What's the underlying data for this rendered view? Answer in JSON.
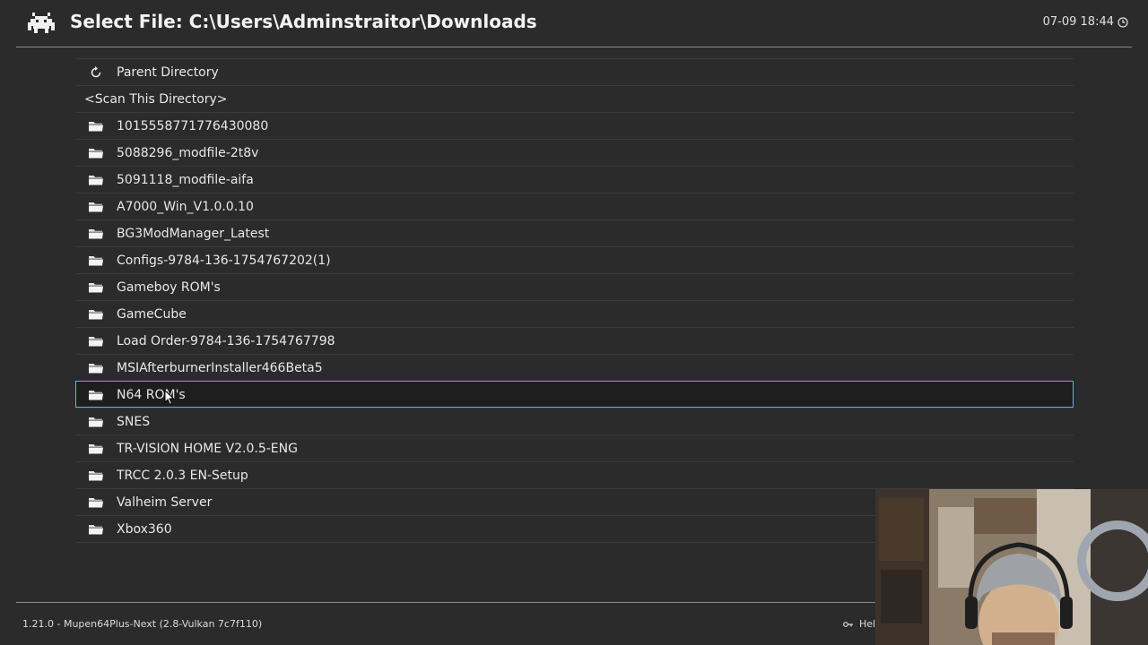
{
  "header": {
    "title": "Select File: C:\\Users\\Adminstraitor\\Downloads",
    "clock": "07-09 18:44"
  },
  "list": {
    "parent_label": "Parent Directory",
    "scan_label": "<Scan This Directory>",
    "folders": [
      "1015558771776430080",
      "5088296_modfile-2t8v",
      "5091118_modfile-aifa",
      "A7000_Win_V1.0.0.10",
      "BG3ModManager_Latest",
      "Configs-9784-136-1754767202(1)",
      "Gameboy ROM's",
      "GameCube",
      "Load Order-9784-136-1754767798",
      "MSIAfterburnerInstaller466Beta5",
      "N64 ROM's",
      "SNES",
      "TR-VISION HOME V2.0.5-ENG",
      "TRCC 2.0.3 EN-Setup",
      "Valheim Server",
      "Xbox360"
    ],
    "selected_index": 10
  },
  "footer": {
    "version": "1.21.0 - Mupen64Plus-Next (2.8-Vulkan 7c7f110)",
    "help_label": "Hel"
  },
  "colors": {
    "background": "#2b2b2b",
    "selection_border": "#5ab4dc",
    "text": "#e8e8e8"
  },
  "icons": {
    "logo": "retroarch-invader-icon",
    "parent": "refresh-icon",
    "folder": "folder-icon",
    "clock": "clock-icon",
    "help": "key-icon"
  }
}
